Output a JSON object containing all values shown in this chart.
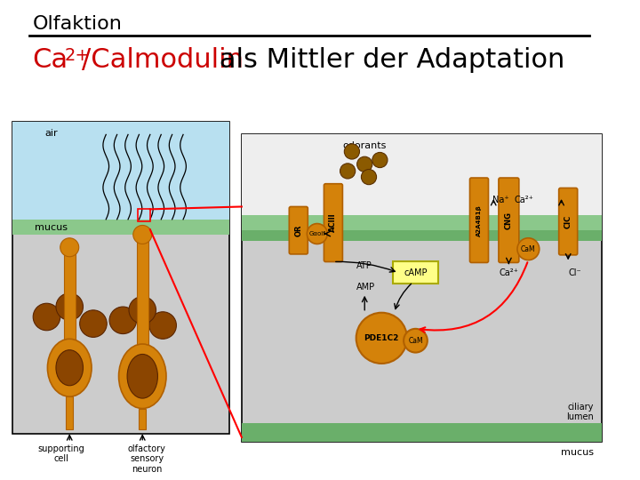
{
  "title": "Olfaktion",
  "subtitle_red": "Ca",
  "subtitle_sup": "2+",
  "subtitle_red2": "/Calmodulin",
  "subtitle_black": " als Mittler der Adaptation",
  "bg_color": "#ffffff",
  "title_color": "#000000",
  "subtitle_red_color": "#cc0000",
  "title_fontsize": 16,
  "subtitle_fontsize": 22,
  "orange": "#D4820A",
  "dark_orange": "#B06000",
  "brown_dark": "#8B4500",
  "light_blue": "#B8E0F0",
  "green_membrane": "#8BC88B",
  "green_membrane2": "#6AAF6A",
  "light_gray": "#D8D8D8",
  "gray_panel": "#CCCCCC",
  "red": "#CC0000",
  "yellow_box": "#FFFF88"
}
